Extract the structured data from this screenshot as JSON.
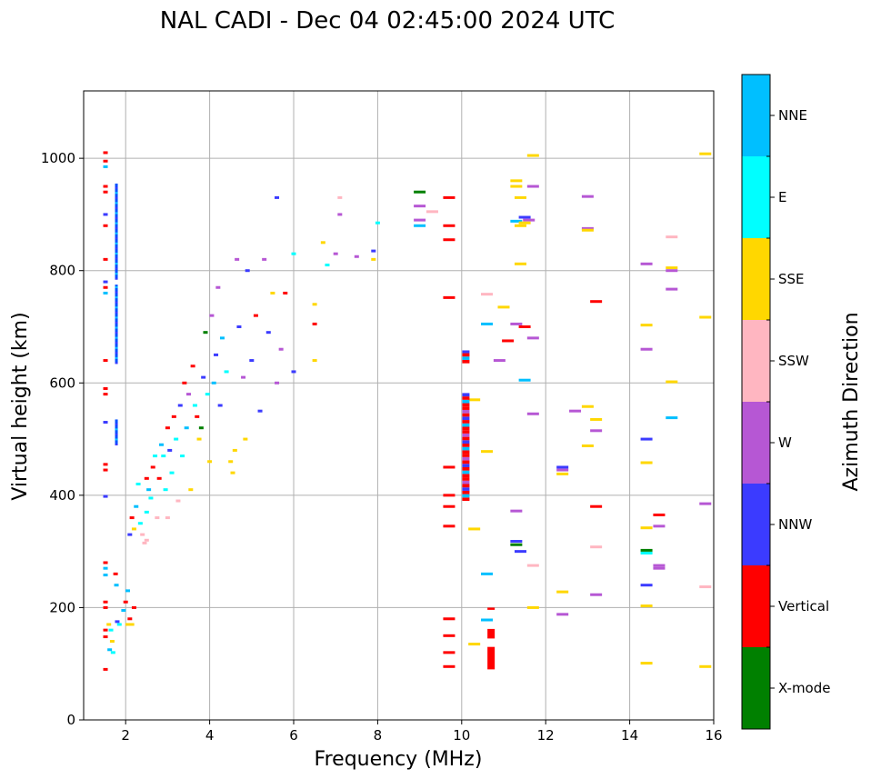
{
  "chart_data": {
    "type": "scatter",
    "title": "NAL CADI - Dec 04 02:45:00 2024 UTC",
    "xlabel": "Frequency (MHz)",
    "ylabel": "Virtual height (km)",
    "xlim": [
      1.0,
      16.0
    ],
    "ylim": [
      0,
      1120
    ],
    "xticks": [
      2,
      4,
      6,
      8,
      10,
      12,
      14,
      16
    ],
    "yticks": [
      0,
      200,
      400,
      600,
      800,
      1000
    ],
    "grid": true,
    "colorbar": {
      "label": "Azimuth Direction",
      "categories": [
        {
          "name": "X-mode",
          "color": "#008000"
        },
        {
          "name": "Vertical",
          "color": "#ff0000"
        },
        {
          "name": "NNW",
          "color": "#3b3bff"
        },
        {
          "name": "W",
          "color": "#b657d4"
        },
        {
          "name": "SSW",
          "color": "#ffb6c1"
        },
        {
          "name": "SSE",
          "color": "#ffd700"
        },
        {
          "name": "E",
          "color": "#00ffff"
        },
        {
          "name": "NNE",
          "color": "#00bfff"
        }
      ]
    },
    "bars": [
      {
        "f": 1.52,
        "h": 1010,
        "c": "Vertical"
      },
      {
        "f": 1.52,
        "h": 995,
        "c": "Vertical"
      },
      {
        "f": 1.52,
        "h": 985,
        "c": "NNE"
      },
      {
        "f": 1.52,
        "h": 950,
        "c": "Vertical"
      },
      {
        "f": 1.52,
        "h": 940,
        "c": "Vertical"
      },
      {
        "f": 1.52,
        "h": 900,
        "c": "NNW"
      },
      {
        "f": 1.52,
        "h": 880,
        "c": "Vertical"
      },
      {
        "f": 1.52,
        "h": 820,
        "c": "Vertical"
      },
      {
        "f": 1.52,
        "h": 780,
        "c": "NNW"
      },
      {
        "f": 1.52,
        "h": 770,
        "c": "Vertical"
      },
      {
        "f": 1.52,
        "h": 760,
        "c": "NNE"
      },
      {
        "f": 1.52,
        "h": 640,
        "c": "Vertical"
      },
      {
        "f": 1.52,
        "h": 590,
        "c": "Vertical"
      },
      {
        "f": 1.52,
        "h": 580,
        "c": "Vertical"
      },
      {
        "f": 1.52,
        "h": 530,
        "c": "NNW"
      },
      {
        "f": 1.52,
        "h": 455,
        "c": "Vertical"
      },
      {
        "f": 1.52,
        "h": 445,
        "c": "Vertical"
      },
      {
        "f": 1.52,
        "h": 398,
        "c": "NNW"
      },
      {
        "f": 1.52,
        "h": 280,
        "c": "Vertical"
      },
      {
        "f": 1.52,
        "h": 270,
        "c": "NNE"
      },
      {
        "f": 1.52,
        "h": 258,
        "c": "NNE"
      },
      {
        "f": 1.52,
        "h": 210,
        "c": "Vertical"
      },
      {
        "f": 1.52,
        "h": 200,
        "c": "Vertical"
      },
      {
        "f": 1.52,
        "h": 160,
        "c": "Vertical"
      },
      {
        "f": 1.52,
        "h": 148,
        "c": "Vertical"
      },
      {
        "f": 1.52,
        "h": 90,
        "c": "Vertical"
      },
      {
        "f": 1.76,
        "h": 260,
        "c": "Vertical"
      },
      {
        "f": 1.78,
        "h": 240,
        "c": "NNE"
      },
      {
        "f": 1.6,
        "h": 170,
        "c": "SSE"
      },
      {
        "f": 1.65,
        "h": 160,
        "c": "E"
      },
      {
        "f": 1.68,
        "h": 140,
        "c": "SSE"
      },
      {
        "f": 1.62,
        "h": 125,
        "c": "NNE"
      },
      {
        "f": 1.7,
        "h": 120,
        "c": "E"
      },
      {
        "f": 1.8,
        "h": 175,
        "c": "NNW"
      },
      {
        "f": 1.85,
        "h": 170,
        "c": "E"
      },
      {
        "f": 1.95,
        "h": 195,
        "c": "NNE"
      },
      {
        "f": 2.0,
        "h": 210,
        "c": "Vertical"
      },
      {
        "f": 2.05,
        "h": 170,
        "c": "SSE"
      },
      {
        "f": 2.1,
        "h": 180,
        "c": "Vertical"
      },
      {
        "f": 2.2,
        "h": 200,
        "c": "Vertical"
      },
      {
        "f": 2.15,
        "h": 170,
        "c": "SSE"
      },
      {
        "f": 2.05,
        "h": 230,
        "c": "NNE"
      },
      {
        "f": 2.1,
        "h": 330,
        "c": "NNW"
      },
      {
        "f": 2.15,
        "h": 360,
        "c": "Vertical"
      },
      {
        "f": 2.2,
        "h": 340,
        "c": "SSE"
      },
      {
        "f": 2.25,
        "h": 380,
        "c": "NNE"
      },
      {
        "f": 2.3,
        "h": 420,
        "c": "E"
      },
      {
        "f": 2.35,
        "h": 350,
        "c": "E"
      },
      {
        "f": 2.4,
        "h": 330,
        "c": "SSW"
      },
      {
        "f": 2.45,
        "h": 315,
        "c": "SSW"
      },
      {
        "f": 2.5,
        "h": 320,
        "c": "SSW"
      },
      {
        "f": 2.5,
        "h": 370,
        "c": "E"
      },
      {
        "f": 2.5,
        "h": 430,
        "c": "Vertical"
      },
      {
        "f": 2.55,
        "h": 410,
        "c": "NNE"
      },
      {
        "f": 2.6,
        "h": 395,
        "c": "E"
      },
      {
        "f": 2.65,
        "h": 450,
        "c": "Vertical"
      },
      {
        "f": 2.7,
        "h": 470,
        "c": "E"
      },
      {
        "f": 2.75,
        "h": 360,
        "c": "SSW"
      },
      {
        "f": 2.8,
        "h": 430,
        "c": "Vertical"
      },
      {
        "f": 2.85,
        "h": 490,
        "c": "NNE"
      },
      {
        "f": 2.9,
        "h": 470,
        "c": "E"
      },
      {
        "f": 2.95,
        "h": 410,
        "c": "E"
      },
      {
        "f": 3.0,
        "h": 360,
        "c": "SSW"
      },
      {
        "f": 3.0,
        "h": 520,
        "c": "Vertical"
      },
      {
        "f": 3.05,
        "h": 480,
        "c": "NNW"
      },
      {
        "f": 3.1,
        "h": 440,
        "c": "E"
      },
      {
        "f": 3.15,
        "h": 540,
        "c": "Vertical"
      },
      {
        "f": 3.2,
        "h": 500,
        "c": "E"
      },
      {
        "f": 3.25,
        "h": 390,
        "c": "SSW"
      },
      {
        "f": 3.3,
        "h": 560,
        "c": "NNW"
      },
      {
        "f": 3.35,
        "h": 470,
        "c": "E"
      },
      {
        "f": 3.4,
        "h": 600,
        "c": "Vertical"
      },
      {
        "f": 3.45,
        "h": 520,
        "c": "NNE"
      },
      {
        "f": 3.5,
        "h": 580,
        "c": "W"
      },
      {
        "f": 3.55,
        "h": 410,
        "c": "SSE"
      },
      {
        "f": 3.6,
        "h": 630,
        "c": "Vertical"
      },
      {
        "f": 3.65,
        "h": 560,
        "c": "E"
      },
      {
        "f": 3.7,
        "h": 540,
        "c": "Vertical"
      },
      {
        "f": 3.75,
        "h": 500,
        "c": "SSE"
      },
      {
        "f": 3.8,
        "h": 520,
        "c": "X-mode"
      },
      {
        "f": 3.85,
        "h": 610,
        "c": "NNW"
      },
      {
        "f": 3.9,
        "h": 690,
        "c": "X-mode"
      },
      {
        "f": 3.95,
        "h": 580,
        "c": "E"
      },
      {
        "f": 4.0,
        "h": 460,
        "c": "SSE"
      },
      {
        "f": 4.05,
        "h": 720,
        "c": "W"
      },
      {
        "f": 4.1,
        "h": 600,
        "c": "NNE"
      },
      {
        "f": 4.15,
        "h": 650,
        "c": "NNW"
      },
      {
        "f": 4.2,
        "h": 770,
        "c": "W"
      },
      {
        "f": 4.25,
        "h": 560,
        "c": "NNW"
      },
      {
        "f": 4.3,
        "h": 680,
        "c": "NNE"
      },
      {
        "f": 4.4,
        "h": 620,
        "c": "E"
      },
      {
        "f": 4.5,
        "h": 460,
        "c": "SSE"
      },
      {
        "f": 4.55,
        "h": 440,
        "c": "SSE"
      },
      {
        "f": 4.6,
        "h": 480,
        "c": "SSE"
      },
      {
        "f": 4.65,
        "h": 820,
        "c": "W"
      },
      {
        "f": 4.7,
        "h": 700,
        "c": "NNW"
      },
      {
        "f": 4.8,
        "h": 610,
        "c": "W"
      },
      {
        "f": 4.85,
        "h": 500,
        "c": "SSE"
      },
      {
        "f": 4.9,
        "h": 800,
        "c": "NNW"
      },
      {
        "f": 5.0,
        "h": 640,
        "c": "NNW"
      },
      {
        "f": 5.1,
        "h": 720,
        "c": "Vertical"
      },
      {
        "f": 5.2,
        "h": 550,
        "c": "NNW"
      },
      {
        "f": 5.3,
        "h": 820,
        "c": "W"
      },
      {
        "f": 5.4,
        "h": 690,
        "c": "NNW"
      },
      {
        "f": 5.5,
        "h": 760,
        "c": "SSE"
      },
      {
        "f": 5.6,
        "h": 930,
        "c": "NNW"
      },
      {
        "f": 5.6,
        "h": 600,
        "c": "W"
      },
      {
        "f": 5.7,
        "h": 660,
        "c": "W"
      },
      {
        "f": 5.8,
        "h": 760,
        "c": "Vertical"
      },
      {
        "f": 6.0,
        "h": 620,
        "c": "NNW"
      },
      {
        "f": 6.0,
        "h": 830,
        "c": "E"
      },
      {
        "f": 6.5,
        "h": 640,
        "c": "SSE"
      },
      {
        "f": 6.5,
        "h": 740,
        "c": "SSE"
      },
      {
        "f": 6.5,
        "h": 705,
        "c": "Vertical"
      },
      {
        "f": 6.7,
        "h": 850,
        "c": "SSE"
      },
      {
        "f": 6.8,
        "h": 810,
        "c": "E"
      },
      {
        "f": 7.0,
        "h": 830,
        "c": "W"
      },
      {
        "f": 7.1,
        "h": 930,
        "c": "SSW"
      },
      {
        "f": 7.1,
        "h": 900,
        "c": "W"
      },
      {
        "f": 7.5,
        "h": 825,
        "c": "W"
      },
      {
        "f": 7.9,
        "h": 820,
        "c": "SSE"
      },
      {
        "f": 7.9,
        "h": 835,
        "c": "NNW"
      },
      {
        "f": 8.0,
        "h": 885,
        "c": "E"
      },
      {
        "f": 9.0,
        "h": 940,
        "c": "X-mode"
      },
      {
        "f": 9.0,
        "h": 915,
        "c": "W"
      },
      {
        "f": 9.0,
        "h": 890,
        "c": "W"
      },
      {
        "f": 9.0,
        "h": 880,
        "c": "NNE"
      },
      {
        "f": 9.3,
        "h": 905,
        "c": "SSW"
      },
      {
        "f": 9.7,
        "h": 930,
        "c": "Vertical"
      },
      {
        "f": 9.7,
        "h": 880,
        "c": "Vertical"
      },
      {
        "f": 9.7,
        "h": 855,
        "c": "Vertical"
      },
      {
        "f": 9.7,
        "h": 752,
        "c": "Vertical"
      },
      {
        "f": 9.7,
        "h": 450,
        "c": "Vertical"
      },
      {
        "f": 9.7,
        "h": 400,
        "c": "Vertical"
      },
      {
        "f": 9.7,
        "h": 380,
        "c": "Vertical"
      },
      {
        "f": 9.7,
        "h": 345,
        "c": "Vertical"
      },
      {
        "f": 9.7,
        "h": 180,
        "c": "Vertical"
      },
      {
        "f": 9.7,
        "h": 150,
        "c": "Vertical"
      },
      {
        "f": 9.7,
        "h": 120,
        "c": "Vertical"
      },
      {
        "f": 9.7,
        "h": 95,
        "c": "Vertical"
      },
      {
        "f": 10.3,
        "h": 570,
        "c": "SSE"
      },
      {
        "f": 10.3,
        "h": 340,
        "c": "SSE"
      },
      {
        "f": 10.3,
        "h": 135,
        "c": "SSE"
      },
      {
        "f": 10.6,
        "h": 758,
        "c": "SSW"
      },
      {
        "f": 10.6,
        "h": 705,
        "c": "NNE"
      },
      {
        "f": 10.6,
        "h": 478,
        "c": "SSE"
      },
      {
        "f": 10.6,
        "h": 260,
        "c": "NNE"
      },
      {
        "f": 10.6,
        "h": 178,
        "c": "NNE"
      },
      {
        "f": 10.9,
        "h": 640,
        "c": "W"
      },
      {
        "f": 11.0,
        "h": 735,
        "c": "SSE"
      },
      {
        "f": 11.1,
        "h": 675,
        "c": "Vertical"
      },
      {
        "f": 11.3,
        "h": 960,
        "c": "SSE"
      },
      {
        "f": 11.3,
        "h": 950,
        "c": "SSE"
      },
      {
        "f": 11.4,
        "h": 930,
        "c": "SSE"
      },
      {
        "f": 11.3,
        "h": 888,
        "c": "NNE"
      },
      {
        "f": 11.5,
        "h": 895,
        "c": "NNW"
      },
      {
        "f": 11.6,
        "h": 890,
        "c": "W"
      },
      {
        "f": 11.7,
        "h": 950,
        "c": "W"
      },
      {
        "f": 11.4,
        "h": 880,
        "c": "SSE"
      },
      {
        "f": 11.5,
        "h": 885,
        "c": "SSE"
      },
      {
        "f": 11.3,
        "h": 705,
        "c": "W"
      },
      {
        "f": 11.5,
        "h": 700,
        "c": "Vertical"
      },
      {
        "f": 11.4,
        "h": 812,
        "c": "SSE"
      },
      {
        "f": 11.7,
        "h": 1005,
        "c": "SSE"
      },
      {
        "f": 11.7,
        "h": 680,
        "c": "W"
      },
      {
        "f": 11.5,
        "h": 605,
        "c": "NNE"
      },
      {
        "f": 11.7,
        "h": 545,
        "c": "W"
      },
      {
        "f": 11.3,
        "h": 372,
        "c": "W"
      },
      {
        "f": 11.3,
        "h": 318,
        "c": "NNW"
      },
      {
        "f": 11.3,
        "h": 312,
        "c": "X-mode"
      },
      {
        "f": 11.4,
        "h": 300,
        "c": "NNW"
      },
      {
        "f": 11.7,
        "h": 275,
        "c": "SSW"
      },
      {
        "f": 11.7,
        "h": 200,
        "c": "SSE"
      },
      {
        "f": 12.4,
        "h": 450,
        "c": "NNW"
      },
      {
        "f": 12.4,
        "h": 445,
        "c": "W"
      },
      {
        "f": 12.4,
        "h": 438,
        "c": "SSE"
      },
      {
        "f": 12.4,
        "h": 228,
        "c": "SSE"
      },
      {
        "f": 12.4,
        "h": 188,
        "c": "W"
      },
      {
        "f": 12.7,
        "h": 550,
        "c": "W"
      },
      {
        "f": 13.0,
        "h": 932,
        "c": "W"
      },
      {
        "f": 13.0,
        "h": 875,
        "c": "W"
      },
      {
        "f": 13.0,
        "h": 872,
        "c": "SSE"
      },
      {
        "f": 13.0,
        "h": 558,
        "c": "SSE"
      },
      {
        "f": 13.0,
        "h": 488,
        "c": "SSE"
      },
      {
        "f": 13.2,
        "h": 745,
        "c": "Vertical"
      },
      {
        "f": 13.2,
        "h": 535,
        "c": "SSE"
      },
      {
        "f": 13.2,
        "h": 515,
        "c": "W"
      },
      {
        "f": 13.2,
        "h": 380,
        "c": "Vertical"
      },
      {
        "f": 13.2,
        "h": 308,
        "c": "SSW"
      },
      {
        "f": 13.2,
        "h": 223,
        "c": "W"
      },
      {
        "f": 14.4,
        "h": 812,
        "c": "W"
      },
      {
        "f": 14.4,
        "h": 703,
        "c": "SSE"
      },
      {
        "f": 14.4,
        "h": 660,
        "c": "W"
      },
      {
        "f": 14.4,
        "h": 500,
        "c": "NNW"
      },
      {
        "f": 14.4,
        "h": 458,
        "c": "SSE"
      },
      {
        "f": 14.4,
        "h": 342,
        "c": "SSE"
      },
      {
        "f": 14.4,
        "h": 302,
        "c": "X-mode"
      },
      {
        "f": 14.4,
        "h": 297,
        "c": "E"
      },
      {
        "f": 14.4,
        "h": 240,
        "c": "NNW"
      },
      {
        "f": 14.4,
        "h": 203,
        "c": "SSE"
      },
      {
        "f": 14.4,
        "h": 101,
        "c": "SSE"
      },
      {
        "f": 14.7,
        "h": 365,
        "c": "Vertical"
      },
      {
        "f": 14.7,
        "h": 345,
        "c": "W"
      },
      {
        "f": 14.7,
        "h": 275,
        "c": "W"
      },
      {
        "f": 14.7,
        "h": 270,
        "c": "W"
      },
      {
        "f": 15.0,
        "h": 860,
        "c": "SSW"
      },
      {
        "f": 15.0,
        "h": 805,
        "c": "SSE"
      },
      {
        "f": 15.0,
        "h": 800,
        "c": "W"
      },
      {
        "f": 15.0,
        "h": 767,
        "c": "W"
      },
      {
        "f": 15.0,
        "h": 602,
        "c": "SSE"
      },
      {
        "f": 15.0,
        "h": 538,
        "c": "NNE"
      },
      {
        "f": 15.8,
        "h": 1008,
        "c": "SSE"
      },
      {
        "f": 15.8,
        "h": 717,
        "c": "SSE"
      },
      {
        "f": 15.8,
        "h": 385,
        "c": "W"
      },
      {
        "f": 15.8,
        "h": 237,
        "c": "SSW"
      },
      {
        "f": 15.8,
        "h": 95,
        "c": "SSE"
      }
    ],
    "columns": [
      {
        "f": 1.78,
        "h0": 785,
        "h1": 955,
        "c": "NNE",
        "fill": "#0050ff"
      },
      {
        "f": 1.78,
        "h0": 635,
        "h1": 775,
        "c": "NNE",
        "fill": "#0050ff"
      },
      {
        "f": 1.78,
        "h0": 490,
        "h1": 535,
        "c": "NNE",
        "fill": "#0050ff"
      },
      {
        "f": 10.1,
        "h0": 390,
        "h1": 582,
        "c": "Vertical",
        "fill": "mixed"
      },
      {
        "f": 10.1,
        "h0": 635,
        "h1": 658,
        "c": "W",
        "fill": "mixed"
      },
      {
        "f": 10.7,
        "h0": 90,
        "h1": 130,
        "c": "Vertical",
        "fill": "solid"
      },
      {
        "f": 10.7,
        "h0": 145,
        "h1": 162,
        "c": "Vertical",
        "fill": "solid"
      },
      {
        "f": 10.7,
        "h0": 196,
        "h1": 200,
        "c": "Vertical",
        "fill": "solid"
      }
    ]
  }
}
